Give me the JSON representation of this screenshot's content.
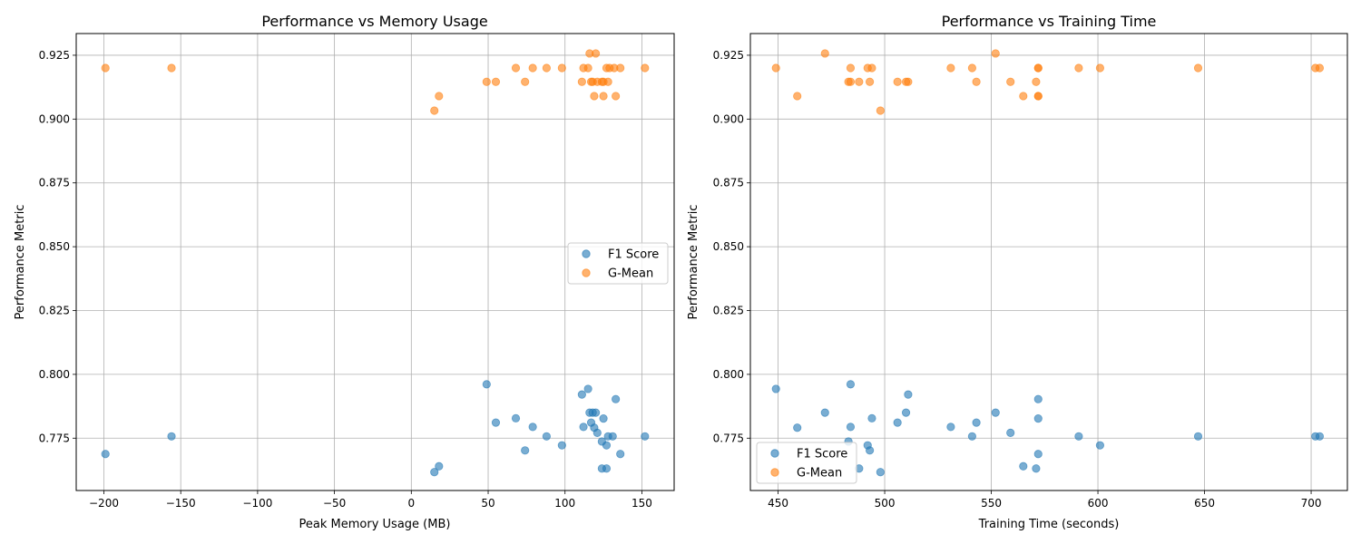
{
  "chart_data": [
    {
      "type": "scatter",
      "title": "Performance vs Memory Usage",
      "xlabel": "Peak Memory Usage (MB)",
      "ylabel": "Performance Metric",
      "xlim": [
        -218,
        171
      ],
      "ylim": [
        0.7545,
        0.9335
      ],
      "xticks": [
        -200,
        -150,
        -100,
        -50,
        0,
        50,
        100,
        150
      ],
      "xtick_labels": [
        "−200",
        "−150",
        "−100",
        "−50",
        "0",
        "50",
        "100",
        "150"
      ],
      "yticks": [
        0.775,
        0.8,
        0.825,
        0.85,
        0.875,
        0.9,
        0.925
      ],
      "ytick_labels": [
        "0.775",
        "0.800",
        "0.825",
        "0.850",
        "0.875",
        "0.900",
        "0.925"
      ],
      "grid": true,
      "legend_position": "center-right",
      "series": [
        {
          "name": "F1 Score",
          "color": "#1f77b4",
          "points": [
            [
              -199,
              0.7688
            ],
            [
              -156,
              0.7757
            ],
            [
              15,
              0.7617
            ],
            [
              18,
              0.764
            ],
            [
              49,
              0.7961
            ],
            [
              55,
              0.7811
            ],
            [
              68,
              0.7828
            ],
            [
              74,
              0.7702
            ],
            [
              79,
              0.7794
            ],
            [
              88,
              0.7757
            ],
            [
              98,
              0.7722
            ],
            [
              111,
              0.7921
            ],
            [
              112,
              0.7794
            ],
            [
              115,
              0.7943
            ],
            [
              116,
              0.785
            ],
            [
              117,
              0.7811
            ],
            [
              118,
              0.785
            ],
            [
              119,
              0.7791
            ],
            [
              120,
              0.785
            ],
            [
              121,
              0.7771
            ],
            [
              124,
              0.7737
            ],
            [
              124,
              0.7631
            ],
            [
              125,
              0.7827
            ],
            [
              127,
              0.7722
            ],
            [
              127,
              0.7631
            ],
            [
              128,
              0.7757
            ],
            [
              131,
              0.7757
            ],
            [
              133,
              0.7903
            ],
            [
              136,
              0.7688
            ],
            [
              152,
              0.7757
            ]
          ]
        },
        {
          "name": "G-Mean",
          "color": "#ff7f0e",
          "points": [
            [
              -199,
              0.92
            ],
            [
              -156,
              0.92
            ],
            [
              15,
              0.9033
            ],
            [
              18,
              0.909
            ],
            [
              49,
              0.9146
            ],
            [
              55,
              0.9146
            ],
            [
              68,
              0.92
            ],
            [
              74,
              0.9146
            ],
            [
              79,
              0.92
            ],
            [
              88,
              0.92
            ],
            [
              98,
              0.92
            ],
            [
              111,
              0.9146
            ],
            [
              112,
              0.92
            ],
            [
              115,
              0.92
            ],
            [
              116,
              0.9257
            ],
            [
              117,
              0.9146
            ],
            [
              118,
              0.9146
            ],
            [
              119,
              0.909
            ],
            [
              120,
              0.9257
            ],
            [
              121,
              0.9146
            ],
            [
              124,
              0.9146
            ],
            [
              125,
              0.9146
            ],
            [
              125,
              0.909
            ],
            [
              127,
              0.92
            ],
            [
              128,
              0.9146
            ],
            [
              129,
              0.92
            ],
            [
              132,
              0.92
            ],
            [
              133,
              0.909
            ],
            [
              136,
              0.92
            ],
            [
              152,
              0.92
            ]
          ]
        }
      ]
    },
    {
      "type": "scatter",
      "title": "Performance vs Training Time",
      "xlabel": "Training Time (seconds)",
      "ylabel": "Performance Metric",
      "xlim": [
        437,
        717
      ],
      "ylim": [
        0.7545,
        0.9335
      ],
      "xticks": [
        450,
        500,
        550,
        600,
        650,
        700
      ],
      "xtick_labels": [
        "450",
        "500",
        "550",
        "600",
        "650",
        "700"
      ],
      "yticks": [
        0.775,
        0.8,
        0.825,
        0.85,
        0.875,
        0.9,
        0.925
      ],
      "ytick_labels": [
        "0.775",
        "0.800",
        "0.825",
        "0.850",
        "0.875",
        "0.900",
        "0.925"
      ],
      "grid": true,
      "legend_position": "lower-left",
      "series": [
        {
          "name": "F1 Score",
          "color": "#1f77b4",
          "points": [
            [
              449,
              0.7943
            ],
            [
              459,
              0.7791
            ],
            [
              472,
              0.785
            ],
            [
              483,
              0.7737
            ],
            [
              484,
              0.7961
            ],
            [
              484,
              0.7794
            ],
            [
              488,
              0.7631
            ],
            [
              492,
              0.7722
            ],
            [
              493,
              0.7702
            ],
            [
              494,
              0.7828
            ],
            [
              498,
              0.7617
            ],
            [
              506,
              0.7811
            ],
            [
              510,
              0.785
            ],
            [
              511,
              0.7921
            ],
            [
              531,
              0.7794
            ],
            [
              541,
              0.7757
            ],
            [
              543,
              0.7811
            ],
            [
              552,
              0.785
            ],
            [
              559,
              0.7771
            ],
            [
              565,
              0.764
            ],
            [
              571,
              0.7631
            ],
            [
              572,
              0.7903
            ],
            [
              572,
              0.7688
            ],
            [
              572,
              0.7827
            ],
            [
              591,
              0.7757
            ],
            [
              601,
              0.7722
            ],
            [
              647,
              0.7757
            ],
            [
              702,
              0.7757
            ],
            [
              704,
              0.7757
            ]
          ]
        },
        {
          "name": "G-Mean",
          "color": "#ff7f0e",
          "points": [
            [
              449,
              0.92
            ],
            [
              459,
              0.909
            ],
            [
              472,
              0.9257
            ],
            [
              483,
              0.9146
            ],
            [
              484,
              0.9146
            ],
            [
              484,
              0.92
            ],
            [
              488,
              0.9146
            ],
            [
              492,
              0.92
            ],
            [
              493,
              0.9146
            ],
            [
              494,
              0.92
            ],
            [
              498,
              0.9033
            ],
            [
              506,
              0.9146
            ],
            [
              510,
              0.9146
            ],
            [
              511,
              0.9146
            ],
            [
              531,
              0.92
            ],
            [
              541,
              0.92
            ],
            [
              543,
              0.9146
            ],
            [
              552,
              0.9257
            ],
            [
              559,
              0.9146
            ],
            [
              565,
              0.909
            ],
            [
              571,
              0.9146
            ],
            [
              572,
              0.92
            ],
            [
              572,
              0.92
            ],
            [
              572,
              0.909
            ],
            [
              572,
              0.909
            ],
            [
              591,
              0.92
            ],
            [
              601,
              0.92
            ],
            [
              647,
              0.92
            ],
            [
              702,
              0.92
            ],
            [
              704,
              0.92
            ]
          ]
        }
      ]
    }
  ]
}
